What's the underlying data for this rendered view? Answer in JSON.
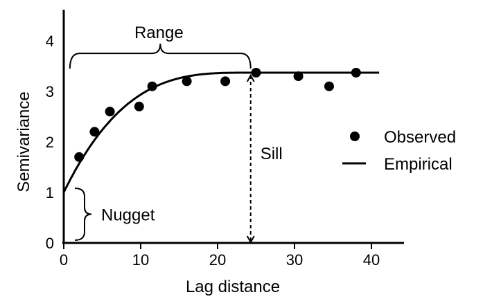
{
  "chart_data": {
    "type": "scatter",
    "xlabel": "Lag distance",
    "ylabel": "Semivariance",
    "xlim": [
      0,
      44
    ],
    "ylim": [
      0,
      4.5
    ],
    "x_ticks": [
      0,
      10,
      20,
      30,
      40
    ],
    "y_ticks": [
      0,
      1,
      2,
      3,
      4
    ],
    "grid": false,
    "legend_placement": "right",
    "series": [
      {
        "name": "Observed",
        "marker": "filled-circle",
        "points": [
          {
            "x": 2,
            "y": 1.7
          },
          {
            "x": 4,
            "y": 2.2
          },
          {
            "x": 6,
            "y": 2.6
          },
          {
            "x": 9.8,
            "y": 2.7
          },
          {
            "x": 11.5,
            "y": 3.1
          },
          {
            "x": 16,
            "y": 3.2
          },
          {
            "x": 21,
            "y": 3.2
          },
          {
            "x": 25,
            "y": 3.37
          },
          {
            "x": 30.5,
            "y": 3.3
          },
          {
            "x": 34.5,
            "y": 3.1
          },
          {
            "x": 38,
            "y": 3.37
          }
        ]
      },
      {
        "name": "Empirical",
        "line": "solid",
        "model": {
          "nugget": 1.0,
          "sill": 3.37,
          "range": 24.3,
          "plateau_end": 41
        }
      }
    ],
    "annotations": {
      "range": {
        "label": "Range",
        "from": 0.8,
        "to": 24.3,
        "y": 3.45
      },
      "sill": {
        "label": "Sill",
        "x": 24.3,
        "from": 0,
        "to": 3.37
      },
      "nugget": {
        "label": "Nugget",
        "x": 0,
        "from": 0,
        "to": 1.0
      }
    }
  }
}
